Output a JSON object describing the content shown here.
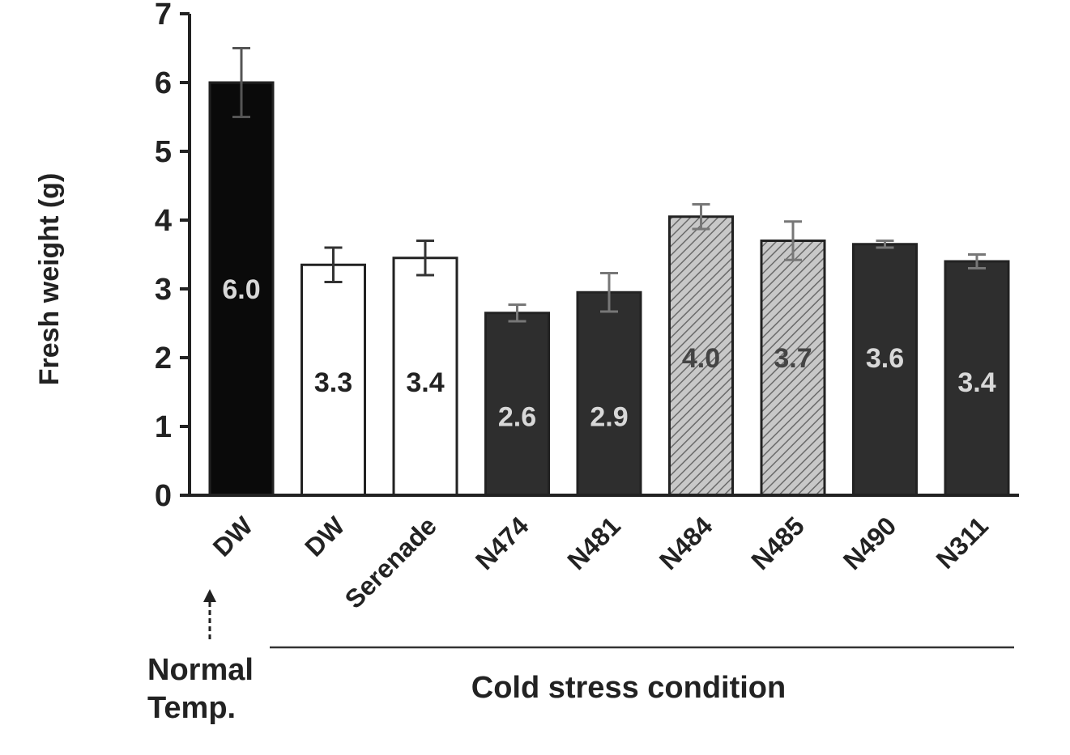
{
  "chart_data": {
    "type": "bar",
    "ylabel": "Fresh weight (g)",
    "ylim": [
      0,
      7
    ],
    "yticks": [
      "0",
      "1",
      "2",
      "3",
      "4",
      "5",
      "6",
      "7"
    ],
    "categories": [
      "DW",
      "DW",
      "Serenade",
      "N474",
      "N481",
      "N484",
      "N485",
      "N490",
      "N311"
    ],
    "values": [
      6.0,
      3.35,
      3.45,
      2.65,
      2.95,
      4.05,
      3.7,
      3.65,
      3.4
    ],
    "errors": [
      0.5,
      0.25,
      0.25,
      0.12,
      0.28,
      0.18,
      0.28,
      0.05,
      0.1
    ],
    "data_labels": [
      "6.0",
      "3.3",
      "3.4",
      "2.6",
      "2.9",
      "4.0",
      "3.7",
      "3.6",
      "3.4"
    ],
    "bar_styles": [
      "black",
      "white",
      "white",
      "dark",
      "dark",
      "hatched",
      "hatched",
      "dark",
      "dark"
    ],
    "groups": {
      "normal": "Normal Temp.",
      "normal_lines": [
        "Normal",
        "Temp."
      ],
      "cold": "Cold stress condition"
    },
    "colors": {
      "black": "#0a0a0a",
      "dark": "#2e2e2e",
      "hatched": "#bdbdbd",
      "white": "#ffffff",
      "axis": "#222222"
    },
    "grid": false,
    "legend": "none"
  }
}
